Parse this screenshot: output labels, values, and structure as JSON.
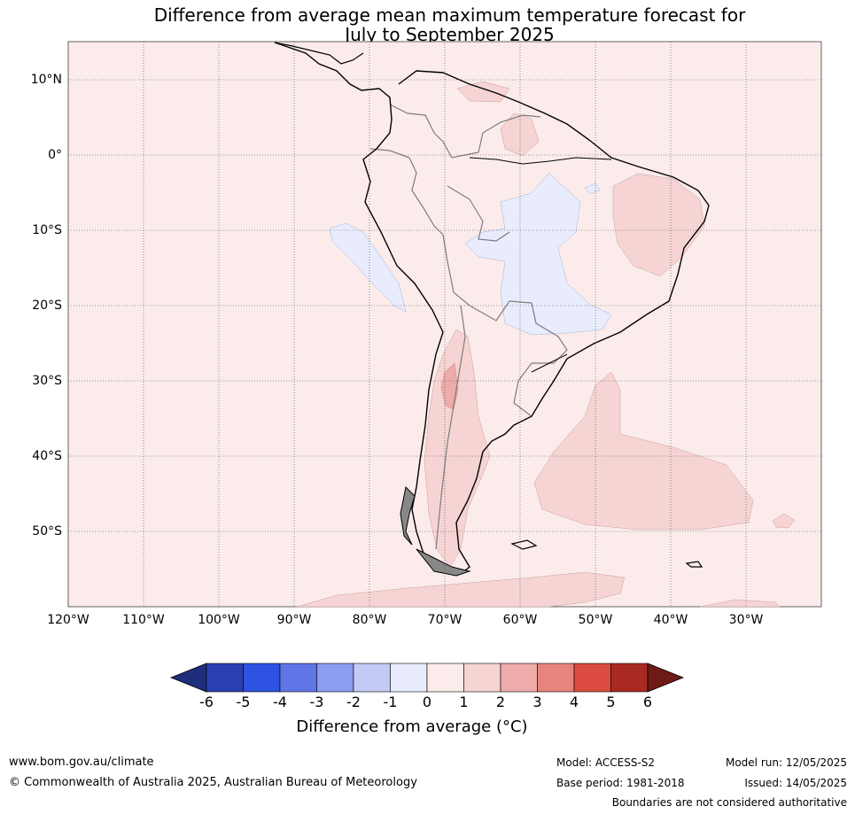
{
  "title_line1": "Difference from average mean maximum temperature forecast for",
  "title_line2": "July to September 2025",
  "map": {
    "lat_labels": [
      "10°N",
      "0°",
      "10°S",
      "20°S",
      "30°S",
      "40°S",
      "50°S"
    ],
    "lon_labels": [
      "120°W",
      "110°W",
      "100°W",
      "90°W",
      "80°W",
      "70°W",
      "60°W",
      "50°W",
      "40°W",
      "30°W"
    ],
    "background_color": "#fbeceb"
  },
  "colorbar": {
    "ticks": [
      "-6",
      "-5",
      "-4",
      "-3",
      "-2",
      "-1",
      "0",
      "1",
      "2",
      "3",
      "4",
      "5",
      "6"
    ],
    "colors": [
      "#1f2e7a",
      "#2b40b0",
      "#2e52e2",
      "#5f76e6",
      "#8a9df0",
      "#c3cbf5",
      "#e8ecfc",
      "#fbeceb",
      "#f5d4d3",
      "#edaba9",
      "#e8847e",
      "#db4b3f",
      "#a92a22",
      "#6e1a15"
    ],
    "label": "Difference from average (°C)"
  },
  "footer": {
    "website": "www.bom.gov.au/climate",
    "copyright": "© Commonwealth of Australia 2025, Australian Bureau of Meteorology",
    "model": "Model: ACCESS-S2",
    "base_period": "Base period: 1981-2018",
    "model_run": "Model run: 12/05/2025",
    "issued": "Issued: 14/05/2025",
    "disclaimer": "Boundaries are not considered authoritative"
  }
}
